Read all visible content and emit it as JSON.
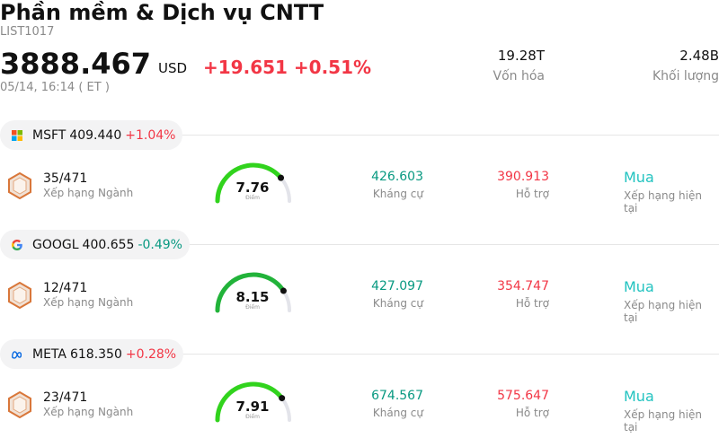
{
  "header": {
    "title": "Phần mềm & Dịch vụ CNTT",
    "code": "LIST1017",
    "price": "3888.467",
    "currency": "USD",
    "change": "+19.651 +0.51%",
    "time": "05/14, 16:14  ( ET )",
    "market_cap_value": "19.28T",
    "market_cap_label": "Vốn hóa",
    "volume_value": "2.48B",
    "volume_label": "Khối lượng"
  },
  "colors": {
    "up": "#f23645",
    "down": "#089981",
    "rating": "#22c3c0",
    "gauge_fill": "#31d31d",
    "gauge_track": "#e3e4ea"
  },
  "stocks": [
    {
      "logo_icon": "microsoft-logo-icon",
      "symbol": "MSFT",
      "price": "409.440",
      "change": "+1.04%",
      "rank": "35/471",
      "rank_label": "Xếp hạng Ngành",
      "score": "7.76",
      "score_label": "Điểm",
      "score_value": 7.76,
      "resistance": "426.603",
      "resistance_label": "Kháng cự",
      "support": "390.913",
      "support_label": "Hỗ trợ",
      "rating": "Mua",
      "rating_label": "Xếp hạng hiện tại"
    },
    {
      "logo_icon": "google-logo-icon",
      "symbol": "GOOGL",
      "price": "400.655",
      "change": "-0.49%",
      "rank": "12/471",
      "rank_label": "Xếp hạng Ngành",
      "score": "8.15",
      "score_label": "Điểm",
      "score_value": 8.15,
      "resistance": "427.097",
      "resistance_label": "Kháng cự",
      "support": "354.747",
      "support_label": "Hỗ trợ",
      "rating": "Mua",
      "rating_label": "Xếp hạng hiện tại"
    },
    {
      "logo_icon": "meta-logo-icon",
      "symbol": "META",
      "price": "618.350",
      "change": "+0.28%",
      "rank": "23/471",
      "rank_label": "Xếp hạng Ngành",
      "score": "7.91",
      "score_label": "Điểm",
      "score_value": 7.91,
      "resistance": "674.567",
      "resistance_label": "Kháng cự",
      "support": "575.647",
      "support_label": "Hỗ trợ",
      "rating": "Mua",
      "rating_label": "Xếp hạng hiện tại"
    }
  ]
}
